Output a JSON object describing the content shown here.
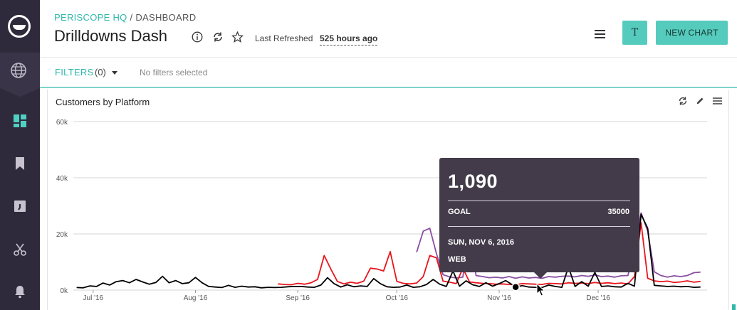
{
  "header": {
    "org": "PERISCOPE HQ",
    "separator": "/",
    "section": "DASHBOARD",
    "title": "Drilldowns Dash",
    "refresh_label": "Last Refreshed",
    "refresh_value": "525 hours ago",
    "user_initial": "T",
    "new_chart_label": "NEW CHART"
  },
  "filters": {
    "label": "FILTERS",
    "count": "(0)",
    "empty_text": "No filters selected"
  },
  "card": {
    "title": "Customers by Platform"
  },
  "tooltip": {
    "value": "1,090",
    "goal_label": "GOAL",
    "goal_value": "35000",
    "date": "SUN, NOV 6, 2016",
    "series": "WEB"
  },
  "colors": {
    "sidebar": "#2f2a3b",
    "accent": "#55cbbd",
    "teal_text": "#2fb8ac",
    "tooltip_bg": "#433b4a",
    "series_web": "#000000",
    "series_red": "#e8151c",
    "series_purple": "#8b4fa3"
  },
  "icons": {
    "sidebar": [
      "logo-icon",
      "globe-icon",
      "dashboard-icon",
      "bookmark-icon",
      "query-icon",
      "scissors-icon",
      "bell-icon"
    ],
    "header": [
      "info-icon",
      "refresh-icon",
      "star-icon",
      "hamburger-menu-icon"
    ],
    "card": [
      "refresh-icon",
      "pencil-icon",
      "hamburger-menu-icon"
    ]
  },
  "chart_data": {
    "type": "line",
    "title": "Customers by Platform",
    "y_ticks": [
      "0k",
      "20k",
      "40k",
      "60k"
    ],
    "x_ticks": [
      "Jul '16",
      "Aug '16",
      "Sep '16",
      "Oct '16",
      "Nov '16",
      "Dec '16"
    ],
    "ylim": [
      0,
      60000
    ],
    "grid": true,
    "series": [
      {
        "name": "",
        "color": "#000000",
        "points": [
          [
            "2016-06-26",
            900
          ],
          [
            "2016-06-28",
            800
          ],
          [
            "2016-06-30",
            1500
          ],
          [
            "2016-07-02",
            1300
          ],
          [
            "2016-07-04",
            2500
          ],
          [
            "2016-07-06",
            1800
          ],
          [
            "2016-07-08",
            3000
          ],
          [
            "2016-07-10",
            3400
          ],
          [
            "2016-07-12",
            2600
          ],
          [
            "2016-07-14",
            3800
          ],
          [
            "2016-07-16",
            2900
          ],
          [
            "2016-07-18",
            2100
          ],
          [
            "2016-07-20",
            2700
          ],
          [
            "2016-07-22",
            4900
          ],
          [
            "2016-07-24",
            2600
          ],
          [
            "2016-07-26",
            3400
          ],
          [
            "2016-07-28",
            2300
          ],
          [
            "2016-07-30",
            2600
          ],
          [
            "2016-08-01",
            4500
          ],
          [
            "2016-08-03",
            2600
          ],
          [
            "2016-08-05",
            1300
          ],
          [
            "2016-08-07",
            1100
          ],
          [
            "2016-08-09",
            900
          ],
          [
            "2016-08-11",
            1700
          ],
          [
            "2016-08-13",
            1000
          ],
          [
            "2016-08-15",
            1400
          ],
          [
            "2016-08-17",
            1100
          ],
          [
            "2016-08-19",
            1200
          ],
          [
            "2016-08-21",
            800
          ],
          [
            "2016-08-23",
            1000
          ],
          [
            "2016-08-25",
            900
          ],
          [
            "2016-08-27",
            1000
          ],
          [
            "2016-08-29",
            1200
          ],
          [
            "2016-08-31",
            1300
          ],
          [
            "2016-09-02",
            1300
          ],
          [
            "2016-09-04",
            1100
          ],
          [
            "2016-09-06",
            1000
          ],
          [
            "2016-09-08",
            1800
          ],
          [
            "2016-09-10",
            4400
          ],
          [
            "2016-09-12",
            2300
          ],
          [
            "2016-09-14",
            1100
          ],
          [
            "2016-09-16",
            1900
          ],
          [
            "2016-09-18",
            1200
          ],
          [
            "2016-09-20",
            1500
          ],
          [
            "2016-09-22",
            1300
          ],
          [
            "2016-09-24",
            4100
          ],
          [
            "2016-09-26",
            2300
          ],
          [
            "2016-09-28",
            1200
          ],
          [
            "2016-09-30",
            1000
          ],
          [
            "2016-10-02",
            1100
          ],
          [
            "2016-10-04",
            1800
          ],
          [
            "2016-10-06",
            1000
          ],
          [
            "2016-10-08",
            1200
          ],
          [
            "2016-10-10",
            2000
          ],
          [
            "2016-10-12",
            3800
          ],
          [
            "2016-10-14",
            2100
          ],
          [
            "2016-10-16",
            1300
          ],
          [
            "2016-10-18",
            6800
          ],
          [
            "2016-10-20",
            1400
          ],
          [
            "2016-10-22",
            3300
          ],
          [
            "2016-10-24",
            1900
          ],
          [
            "2016-10-26",
            1300
          ],
          [
            "2016-10-28",
            2600
          ],
          [
            "2016-10-30",
            1400
          ],
          [
            "2016-11-01",
            2300
          ],
          [
            "2016-11-03",
            3400
          ],
          [
            "2016-11-05",
            1900
          ],
          [
            "2016-11-06",
            1090
          ],
          [
            "2016-11-08",
            1600
          ],
          [
            "2016-11-10",
            1100
          ],
          [
            "2016-11-12",
            1000
          ],
          [
            "2016-11-14",
            900
          ],
          [
            "2016-11-16",
            1800
          ],
          [
            "2016-11-18",
            1300
          ],
          [
            "2016-11-20",
            1000
          ],
          [
            "2016-11-22",
            8200
          ],
          [
            "2016-11-24",
            1300
          ],
          [
            "2016-11-26",
            3000
          ],
          [
            "2016-11-28",
            1400
          ],
          [
            "2016-11-30",
            6300
          ],
          [
            "2016-12-02",
            1300
          ],
          [
            "2016-12-04",
            1500
          ],
          [
            "2016-12-06",
            1200
          ],
          [
            "2016-12-08",
            1100
          ],
          [
            "2016-12-10",
            2400
          ],
          [
            "2016-12-12",
            1400
          ],
          [
            "2016-12-14",
            27000
          ],
          [
            "2016-12-16",
            22000
          ],
          [
            "2016-12-18",
            1700
          ],
          [
            "2016-12-20",
            1500
          ],
          [
            "2016-12-22",
            1300
          ],
          [
            "2016-12-24",
            1400
          ],
          [
            "2016-12-26",
            1200
          ],
          [
            "2016-12-28",
            1300
          ],
          [
            "2016-12-30",
            1000
          ],
          [
            "2017-01-01",
            1100
          ]
        ]
      },
      {
        "name": "",
        "color": "#e8151c",
        "points": [
          [
            "2016-08-26",
            2200
          ],
          [
            "2016-08-28",
            2000
          ],
          [
            "2016-08-30",
            1900
          ],
          [
            "2016-09-01",
            2400
          ],
          [
            "2016-09-03",
            2100
          ],
          [
            "2016-09-05",
            2600
          ],
          [
            "2016-09-07",
            3800
          ],
          [
            "2016-09-09",
            12300
          ],
          [
            "2016-09-11",
            7500
          ],
          [
            "2016-09-13",
            3100
          ],
          [
            "2016-09-15",
            2200
          ],
          [
            "2016-09-17",
            2800
          ],
          [
            "2016-09-19",
            2400
          ],
          [
            "2016-09-21",
            3200
          ],
          [
            "2016-09-23",
            7800
          ],
          [
            "2016-09-25",
            7500
          ],
          [
            "2016-09-27",
            6800
          ],
          [
            "2016-09-29",
            13700
          ],
          [
            "2016-10-01",
            3100
          ],
          [
            "2016-10-03",
            2400
          ],
          [
            "2016-10-05",
            2200
          ],
          [
            "2016-10-07",
            2500
          ],
          [
            "2016-10-09",
            4800
          ],
          [
            "2016-10-11",
            12300
          ],
          [
            "2016-10-13",
            11500
          ],
          [
            "2016-10-15",
            3200
          ],
          [
            "2016-10-17",
            2800
          ],
          [
            "2016-10-19",
            2300
          ],
          [
            "2016-10-21",
            7800
          ],
          [
            "2016-10-23",
            2900
          ],
          [
            "2016-10-25",
            2600
          ],
          [
            "2016-10-27",
            2400
          ],
          [
            "2016-10-29",
            2300
          ],
          [
            "2016-10-31",
            2100
          ],
          [
            "2016-11-02",
            2200
          ],
          [
            "2016-11-04",
            2000
          ],
          [
            "2016-11-06",
            1900
          ],
          [
            "2016-11-08",
            2300
          ],
          [
            "2016-11-10",
            2200
          ],
          [
            "2016-11-12",
            2100
          ],
          [
            "2016-11-14",
            2000
          ],
          [
            "2016-11-16",
            2400
          ],
          [
            "2016-11-18",
            2300
          ],
          [
            "2016-11-20",
            2200
          ],
          [
            "2016-11-22",
            2600
          ],
          [
            "2016-11-24",
            2400
          ],
          [
            "2016-11-26",
            2500
          ],
          [
            "2016-11-28",
            2300
          ],
          [
            "2016-11-30",
            2700
          ],
          [
            "2016-12-02",
            2400
          ],
          [
            "2016-12-04",
            2600
          ],
          [
            "2016-12-06",
            2300
          ],
          [
            "2016-12-08",
            2500
          ],
          [
            "2016-12-10",
            2200
          ],
          [
            "2016-12-12",
            4800
          ],
          [
            "2016-12-14",
            24000
          ],
          [
            "2016-12-16",
            4200
          ],
          [
            "2016-12-18",
            3300
          ],
          [
            "2016-12-20",
            3000
          ],
          [
            "2016-12-22",
            3200
          ],
          [
            "2016-12-24",
            2700
          ],
          [
            "2016-12-26",
            2900
          ],
          [
            "2016-12-28",
            3300
          ],
          [
            "2016-12-30",
            2800
          ],
          [
            "2017-01-01",
            3100
          ]
        ]
      },
      {
        "name": "",
        "color": "#8b4fa3",
        "points": [
          [
            "2016-10-07",
            13500
          ],
          [
            "2016-10-09",
            21000
          ],
          [
            "2016-10-11",
            22000
          ],
          [
            "2016-10-13",
            13000
          ],
          [
            "2016-10-15",
            5500
          ],
          [
            "2016-10-17",
            4700
          ],
          [
            "2016-10-19",
            4300
          ],
          [
            "2016-10-21",
            4600
          ],
          [
            "2016-10-23",
            22500
          ],
          [
            "2016-10-25",
            5200
          ],
          [
            "2016-10-27",
            4800
          ],
          [
            "2016-10-29",
            4400
          ],
          [
            "2016-10-31",
            4600
          ],
          [
            "2016-11-02",
            4300
          ],
          [
            "2016-11-04",
            4800
          ],
          [
            "2016-11-06",
            4200
          ],
          [
            "2016-11-08",
            4700
          ],
          [
            "2016-11-10",
            4300
          ],
          [
            "2016-11-12",
            4500
          ],
          [
            "2016-11-14",
            4200
          ],
          [
            "2016-11-16",
            4800
          ],
          [
            "2016-11-18",
            4600
          ],
          [
            "2016-11-20",
            4900
          ],
          [
            "2016-11-22",
            5000
          ],
          [
            "2016-11-24",
            4700
          ],
          [
            "2016-11-26",
            5200
          ],
          [
            "2016-11-28",
            4900
          ],
          [
            "2016-11-30",
            5400
          ],
          [
            "2016-12-02",
            4800
          ],
          [
            "2016-12-04",
            5000
          ],
          [
            "2016-12-06",
            4600
          ],
          [
            "2016-12-08",
            5100
          ],
          [
            "2016-12-10",
            5200
          ],
          [
            "2016-12-12",
            14500
          ],
          [
            "2016-12-14",
            27500
          ],
          [
            "2016-12-16",
            21000
          ],
          [
            "2016-12-18",
            6500
          ],
          [
            "2016-12-20",
            5200
          ],
          [
            "2016-12-22",
            4600
          ],
          [
            "2016-12-24",
            5100
          ],
          [
            "2016-12-26",
            4800
          ],
          [
            "2016-12-28",
            5200
          ],
          [
            "2016-12-30",
            6200
          ],
          [
            "2017-01-01",
            6400
          ]
        ]
      }
    ]
  }
}
